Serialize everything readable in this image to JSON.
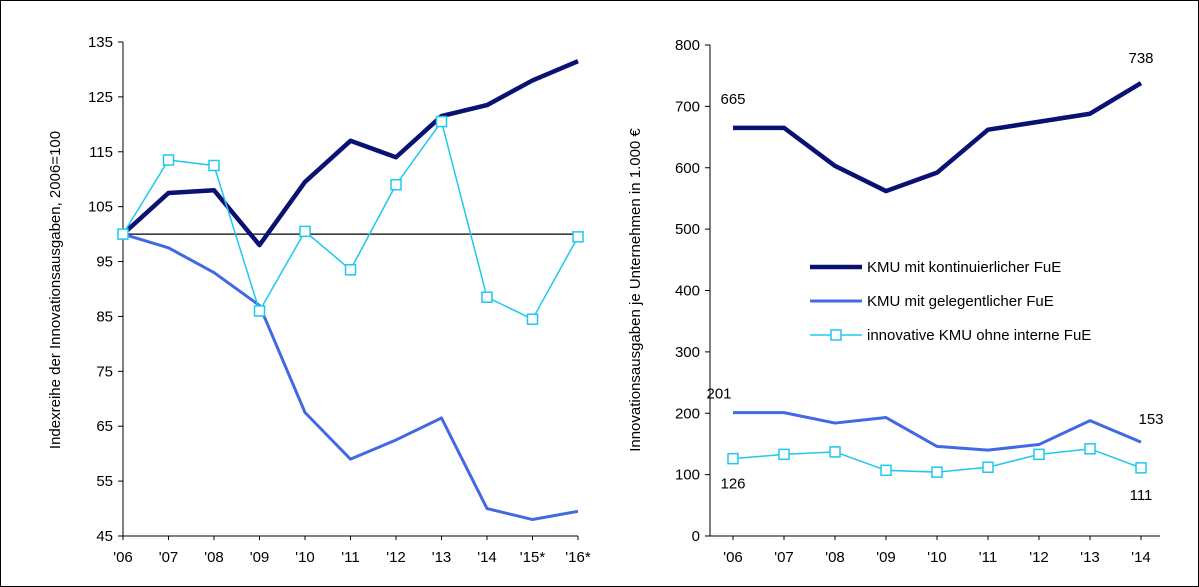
{
  "chart_data": [
    {
      "type": "line",
      "ylabel": "Indexreihe der Innovationsausgaben, 2006=100",
      "categories": [
        "'06",
        "'07",
        "'08",
        "'09",
        "'10",
        "'11",
        "'12",
        "'13",
        "'14",
        "'15*",
        "'16*"
      ],
      "y_ticks": [
        "45",
        "55",
        "65",
        "75",
        "85",
        "95",
        "105",
        "115",
        "125",
        "135"
      ],
      "ylim": [
        45,
        135
      ],
      "reference_line": 100,
      "series": [
        {
          "name": "KMU mit kontinuierlicher FuE",
          "color": "#0a1172",
          "marker": "none",
          "values": [
            100,
            107.5,
            108,
            98,
            109.5,
            117,
            114,
            121.5,
            123.5,
            128,
            131.5
          ]
        },
        {
          "name": "KMU mit gelegentlicher FuE",
          "color": "#4169e1",
          "marker": "none",
          "values": [
            100,
            97.5,
            93,
            87,
            67.5,
            59,
            62.5,
            66.5,
            50,
            48,
            49.5
          ]
        },
        {
          "name": "innovative KMU ohne interne FuE",
          "color": "#1ec8ee",
          "marker": "square",
          "values": [
            100,
            113.5,
            112.5,
            86,
            100.5,
            93.5,
            109,
            120.5,
            88.5,
            84.5,
            99.5
          ]
        }
      ]
    },
    {
      "type": "line",
      "ylabel": "Innovationsausgaben je Unternehmen in 1.000 €",
      "categories": [
        "'06",
        "'07",
        "'08",
        "'09",
        "'10",
        "'11",
        "'12",
        "'13",
        "'14"
      ],
      "y_ticks": [
        "0",
        "100",
        "200",
        "300",
        "400",
        "500",
        "600",
        "700",
        "800"
      ],
      "ylim": [
        0,
        800
      ],
      "legend": "center-right",
      "series": [
        {
          "name": "KMU mit kontinuierlicher FuE",
          "color": "#0a1172",
          "marker": "none",
          "values": [
            665,
            665,
            603,
            562,
            592,
            662,
            675,
            688,
            738
          ]
        },
        {
          "name": "KMU mit gelegentlicher FuE",
          "color": "#4169e1",
          "marker": "none",
          "values": [
            201,
            201,
            184,
            193,
            146,
            140,
            149,
            188,
            153
          ]
        },
        {
          "name": "innovative KMU ohne interne FuE",
          "color": "#1ec8ee",
          "marker": "square",
          "values": [
            126,
            133,
            137,
            107,
            104,
            112,
            133,
            142,
            111
          ]
        }
      ],
      "data_labels": [
        {
          "series": 0,
          "index": 0,
          "text": "665"
        },
        {
          "series": 0,
          "index": 8,
          "text": "738"
        },
        {
          "series": 1,
          "index": 0,
          "text": "201"
        },
        {
          "series": 1,
          "index": 8,
          "text": "153"
        },
        {
          "series": 2,
          "index": 0,
          "text": "126"
        },
        {
          "series": 2,
          "index": 8,
          "text": "111"
        }
      ]
    }
  ]
}
